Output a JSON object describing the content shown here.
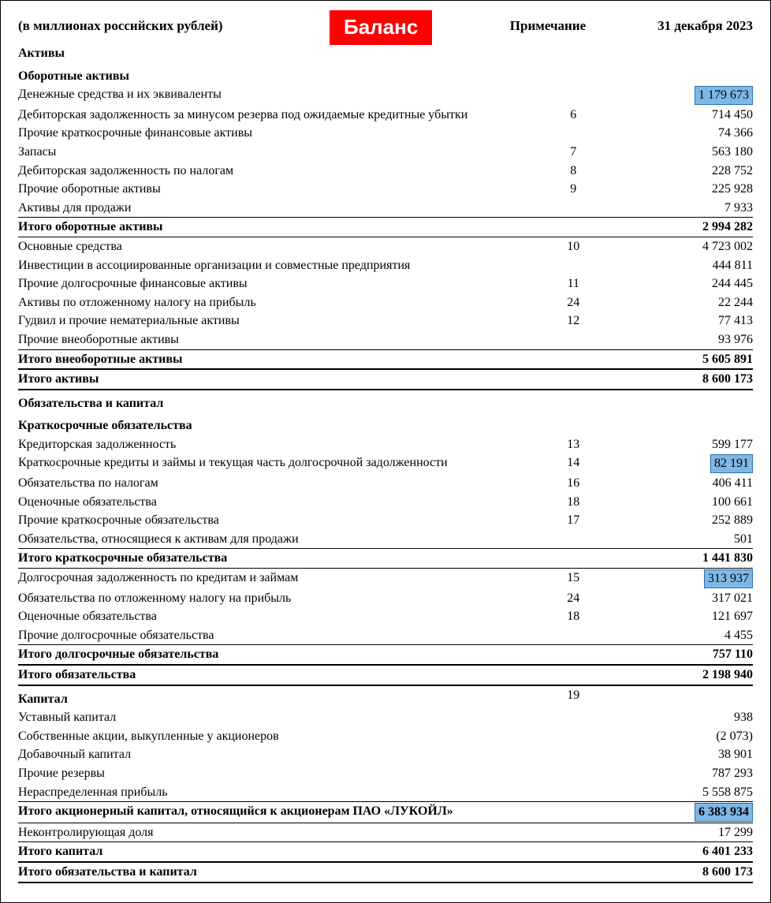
{
  "header": {
    "units": "(в миллионах российских рублей)",
    "badge": "Баланс",
    "note_col": "Примечание",
    "value_col": "31 декабря 2023"
  },
  "colors": {
    "badge_bg": "#ff0000",
    "badge_fg": "#ffffff",
    "highlight_bg": "#7fb7e5",
    "highlight_border": "#2f6fa8",
    "text": "#000000",
    "background": "#ffffff"
  },
  "rows": [
    {
      "label": "Активы",
      "note": "",
      "value": "",
      "style": "section"
    },
    {
      "label": "Оборотные активы",
      "note": "",
      "value": "",
      "style": "section"
    },
    {
      "label": "Денежные средства и их эквиваленты",
      "note": "",
      "value": "1 179 673",
      "highlight": true
    },
    {
      "label": "Дебиторская задолженность за минусом резерва под ожидаемые кредитные убытки",
      "note": "6",
      "value": "714 450"
    },
    {
      "label": "Прочие краткосрочные финансовые активы",
      "note": "",
      "value": "74 366"
    },
    {
      "label": "Запасы",
      "note": "7",
      "value": "563 180"
    },
    {
      "label": "Дебиторская задолженность по налогам",
      "note": "8",
      "value": "228 752"
    },
    {
      "label": "Прочие оборотные активы",
      "note": "9",
      "value": "225 928"
    },
    {
      "label": "Активы для продажи",
      "note": "",
      "value": "7 933",
      "rule": "thin"
    },
    {
      "label": "Итого оборотные активы",
      "note": "",
      "value": "2 994 282",
      "style": "bold",
      "rule": "thin"
    },
    {
      "label": "Основные средства",
      "note": "10",
      "value": "4 723 002"
    },
    {
      "label": "Инвестиции в ассоциированные организации и совместные предприятия",
      "note": "",
      "value": "444 811"
    },
    {
      "label": "Прочие долгосрочные финансовые активы",
      "note": "11",
      "value": "244 445"
    },
    {
      "label": "Активы по отложенному налогу на прибыль",
      "note": "24",
      "value": "22 244"
    },
    {
      "label": "Гудвил и прочие нематериальные активы",
      "note": "12",
      "value": "77 413"
    },
    {
      "label": "Прочие внеоборотные активы",
      "note": "",
      "value": "93 976",
      "rule": "thin"
    },
    {
      "label": "Итого внеоборотные активы",
      "note": "",
      "value": "5 605 891",
      "style": "bold",
      "rule": "thick"
    },
    {
      "label": "Итого активы",
      "note": "",
      "value": "8 600 173",
      "style": "bold",
      "rule": "thick"
    },
    {
      "label": "Обязательства и капитал",
      "note": "",
      "value": "",
      "style": "section"
    },
    {
      "label": "Краткосрочные обязательства",
      "note": "",
      "value": "",
      "style": "section"
    },
    {
      "label": "Кредиторская задолженность",
      "note": "13",
      "value": "599 177"
    },
    {
      "label": "Краткосрочные кредиты и займы и текущая часть долгосрочной задолженности",
      "note": "14",
      "value": "82 191",
      "highlight": true
    },
    {
      "label": "Обязательства по налогам",
      "note": "16",
      "value": "406 411"
    },
    {
      "label": "Оценочные обязательства",
      "note": "18",
      "value": "100 661"
    },
    {
      "label": "Прочие краткосрочные обязательства",
      "note": "17",
      "value": "252 889"
    },
    {
      "label": "Обязательства, относящиеся к активам для продажи",
      "note": "",
      "value": "501",
      "rule": "thin"
    },
    {
      "label": "Итого краткосрочные обязательства",
      "note": "",
      "value": "1 441 830",
      "style": "bold",
      "rule": "thin"
    },
    {
      "label": "Долгосрочная задолженность по кредитам и займам",
      "note": "15",
      "value": "313 937",
      "highlight": true
    },
    {
      "label": "Обязательства по отложенному налогу на прибыль",
      "note": "24",
      "value": "317 021"
    },
    {
      "label": "Оценочные обязательства",
      "note": "18",
      "value": "121 697"
    },
    {
      "label": "Прочие долгосрочные обязательства",
      "note": "",
      "value": "4 455",
      "rule": "thin"
    },
    {
      "label": "Итого долгосрочные обязательства",
      "note": "",
      "value": "757 110",
      "style": "bold",
      "rule": "thick"
    },
    {
      "label": "Итого обязательства",
      "note": "",
      "value": "2 198 940",
      "style": "bold",
      "rule": "thick"
    },
    {
      "label": "Капитал",
      "note": "19",
      "value": "",
      "style": "section"
    },
    {
      "label": "Уставный капитал",
      "note": "",
      "value": "938"
    },
    {
      "label": "Собственные акции, выкупленные у акционеров",
      "note": "",
      "value": "(2 073)"
    },
    {
      "label": "Добавочный капитал",
      "note": "",
      "value": "38 901"
    },
    {
      "label": "Прочие резервы",
      "note": "",
      "value": "787 293"
    },
    {
      "label": "Нераспределенная прибыль",
      "note": "",
      "value": "5 558 875",
      "rule": "thin"
    },
    {
      "label": "Итого акционерный капитал, относящийся к акционерам ПАО «ЛУКОЙЛ»",
      "note": "",
      "value": "6 383 934",
      "style": "bold",
      "rule": "thin",
      "highlight": true
    },
    {
      "label": "Неконтролирующая доля",
      "note": "",
      "value": "17 299",
      "rule": "thin"
    },
    {
      "label": "Итого капитал",
      "note": "",
      "value": "6 401 233",
      "style": "bold",
      "rule": "thick"
    },
    {
      "label": "Итого обязательства и капитал",
      "note": "",
      "value": "8 600 173",
      "style": "bold",
      "rule": "thick"
    }
  ]
}
